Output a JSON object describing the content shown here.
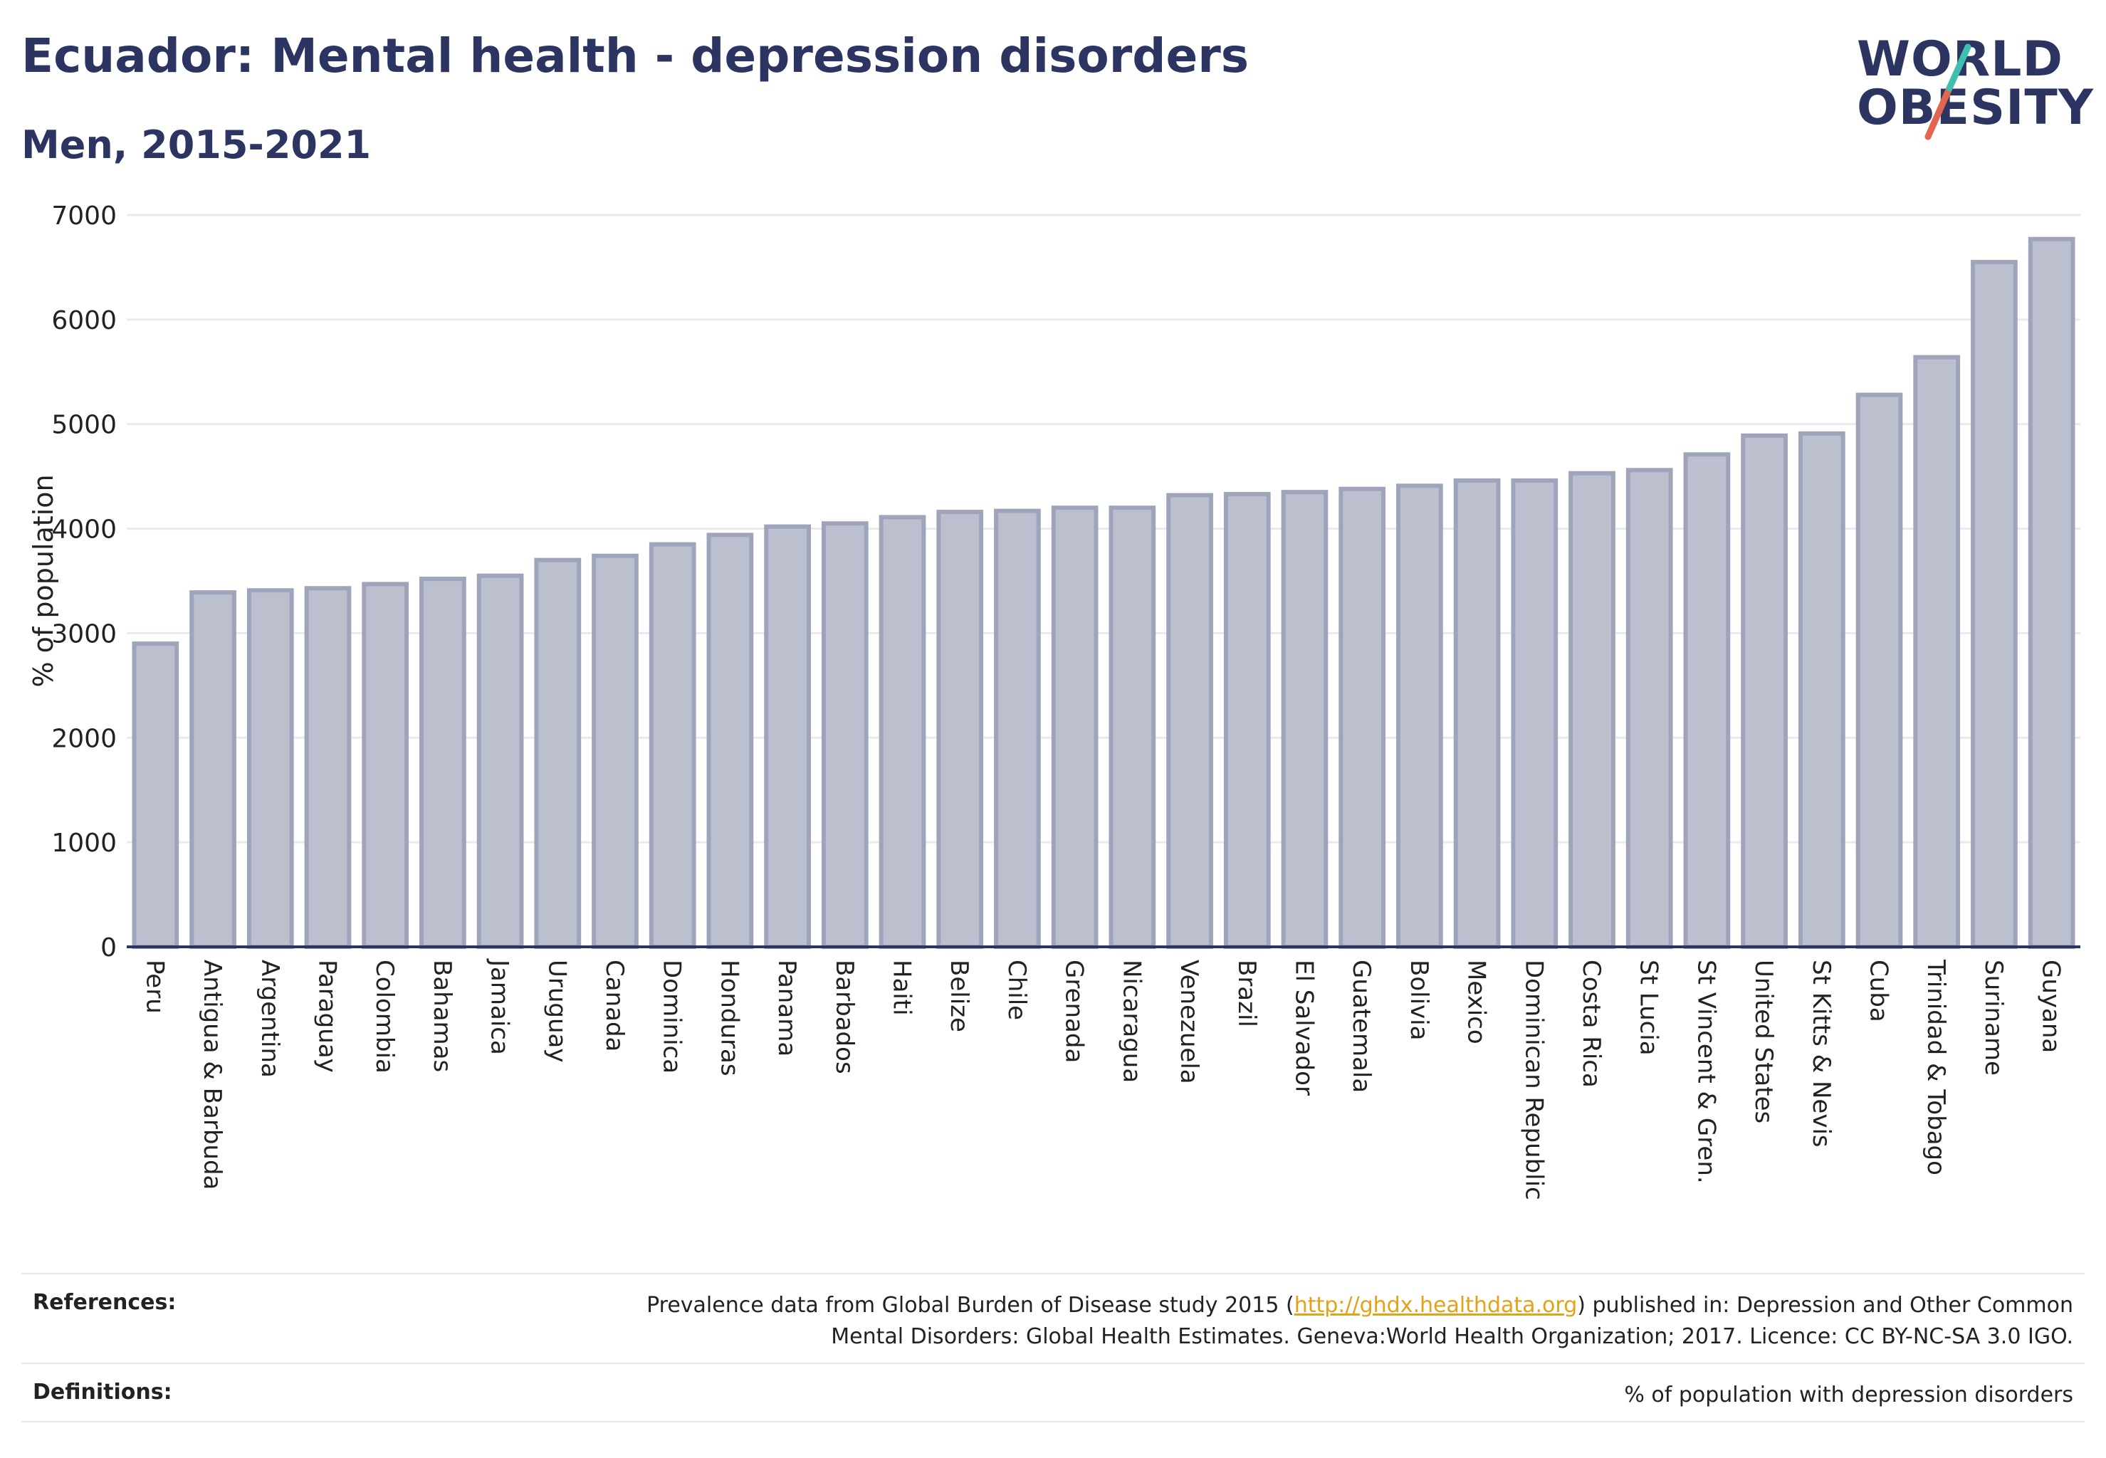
{
  "header": {
    "title": "Ecuador: Mental health - depression disorders",
    "subtitle": "Men, 2015-2021"
  },
  "logo": {
    "line1": "WORLD",
    "line2": "OBESITY",
    "accent_teal": "#3fbfb0",
    "accent_red": "#e2654f"
  },
  "chart_data": {
    "type": "bar",
    "title": "",
    "xlabel": "",
    "ylabel": "% of population",
    "ylim": [
      0,
      7000
    ],
    "yticks": [
      0,
      1000,
      2000,
      3000,
      4000,
      5000,
      6000,
      7000
    ],
    "grid": true,
    "bar_color": "#bcc0ce",
    "bar_edge_color": "#9ea4ba",
    "categories": [
      "Peru",
      "Antigua & Barbuda",
      "Argentina",
      "Paraguay",
      "Colombia",
      "Bahamas",
      "Jamaica",
      "Uruguay",
      "Canada",
      "Dominica",
      "Honduras",
      "Panama",
      "Barbados",
      "Haiti",
      "Belize",
      "Chile",
      "Grenada",
      "Nicaragua",
      "Venezuela",
      "Brazil",
      "El Salvador",
      "Guatemala",
      "Bolivia",
      "Mexico",
      "Dominican Republic",
      "Costa Rica",
      "St Lucia",
      "St Vincent & Gren.",
      "United States",
      "St Kitts & Nevis",
      "Cuba",
      "Trinidad & Tobago",
      "Suriname",
      "Guyana"
    ],
    "values": [
      2900,
      3390,
      3410,
      3430,
      3470,
      3520,
      3550,
      3700,
      3740,
      3850,
      3940,
      4020,
      4050,
      4110,
      4160,
      4170,
      4200,
      4200,
      4320,
      4330,
      4350,
      4380,
      4410,
      4460,
      4460,
      4530,
      4560,
      4710,
      4890,
      4910,
      5280,
      5640,
      6550,
      6770
    ]
  },
  "footer": {
    "references_label": "References:",
    "references_text_pre": "Prevalence data from Global Burden of Disease study 2015 (",
    "references_link": "http://ghdx.healthdata.org",
    "references_text_post": ") published in: Depression and Other Common",
    "references_text_line2": "Mental Disorders: Global Health Estimates. Geneva:World Health Organization; 2017. Licence: CC BY-NC-SA 3.0 IGO.",
    "definitions_label": "Definitions:",
    "definitions_text": "% of population with depression disorders"
  }
}
